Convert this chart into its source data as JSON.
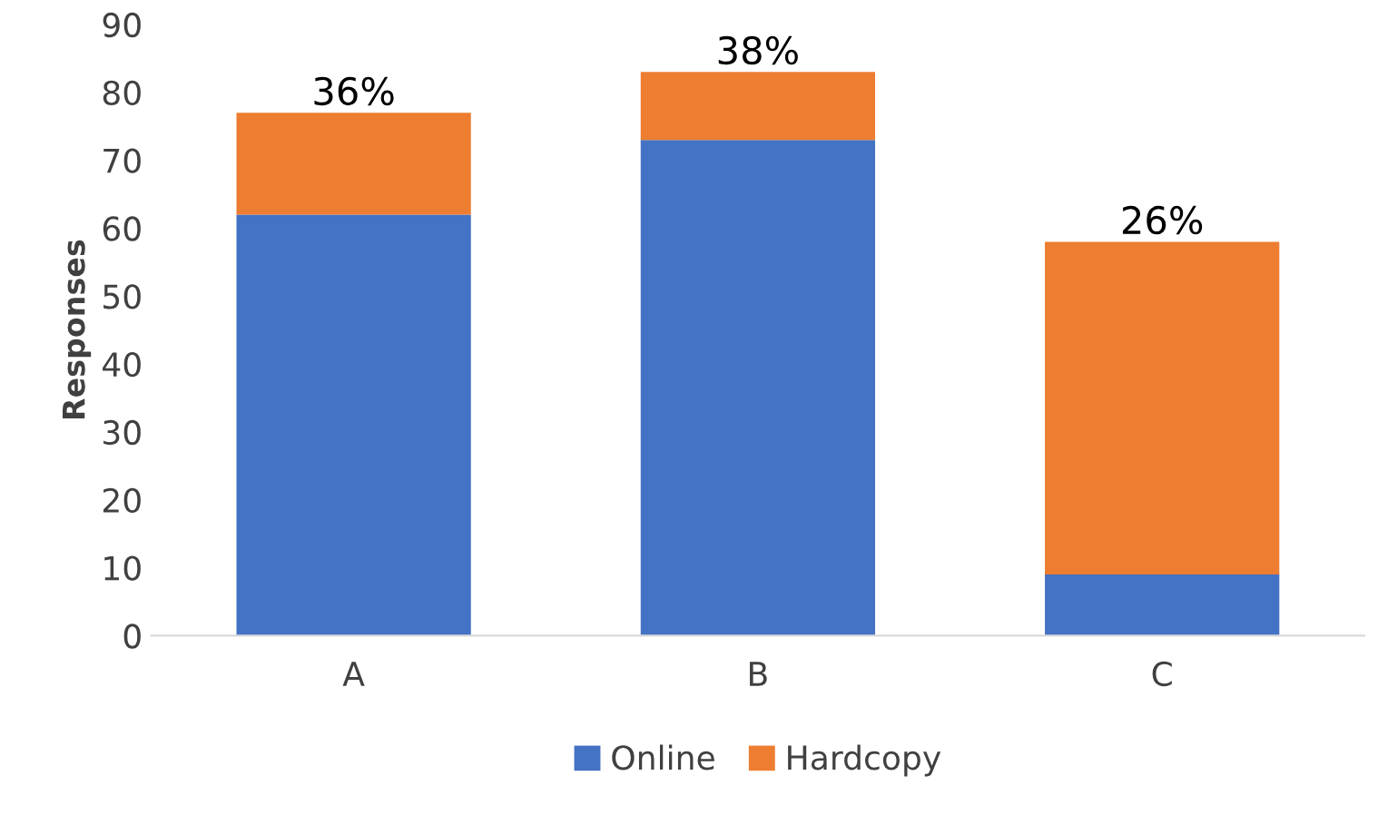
{
  "chart_data": {
    "type": "bar",
    "stacked": true,
    "ylabel": "Responses",
    "categories": [
      "A",
      "B",
      "C"
    ],
    "series": [
      {
        "name": "Online",
        "color": "#4472c4",
        "values": [
          62,
          73,
          9
        ]
      },
      {
        "name": "Hardcopy",
        "color": "#ed7d31",
        "values": [
          15,
          10,
          49
        ]
      }
    ],
    "annotations": [
      {
        "text": "36%",
        "x": "A",
        "y": 77
      },
      {
        "text": "38%",
        "x": "B",
        "y": 83
      },
      {
        "text": "26%",
        "x": "C",
        "y": 58
      }
    ],
    "ylim": [
      0,
      90
    ],
    "yticks": [
      0,
      10,
      20,
      30,
      40,
      50,
      60,
      70,
      80,
      90
    ],
    "grid": false,
    "legend": "bottom"
  }
}
